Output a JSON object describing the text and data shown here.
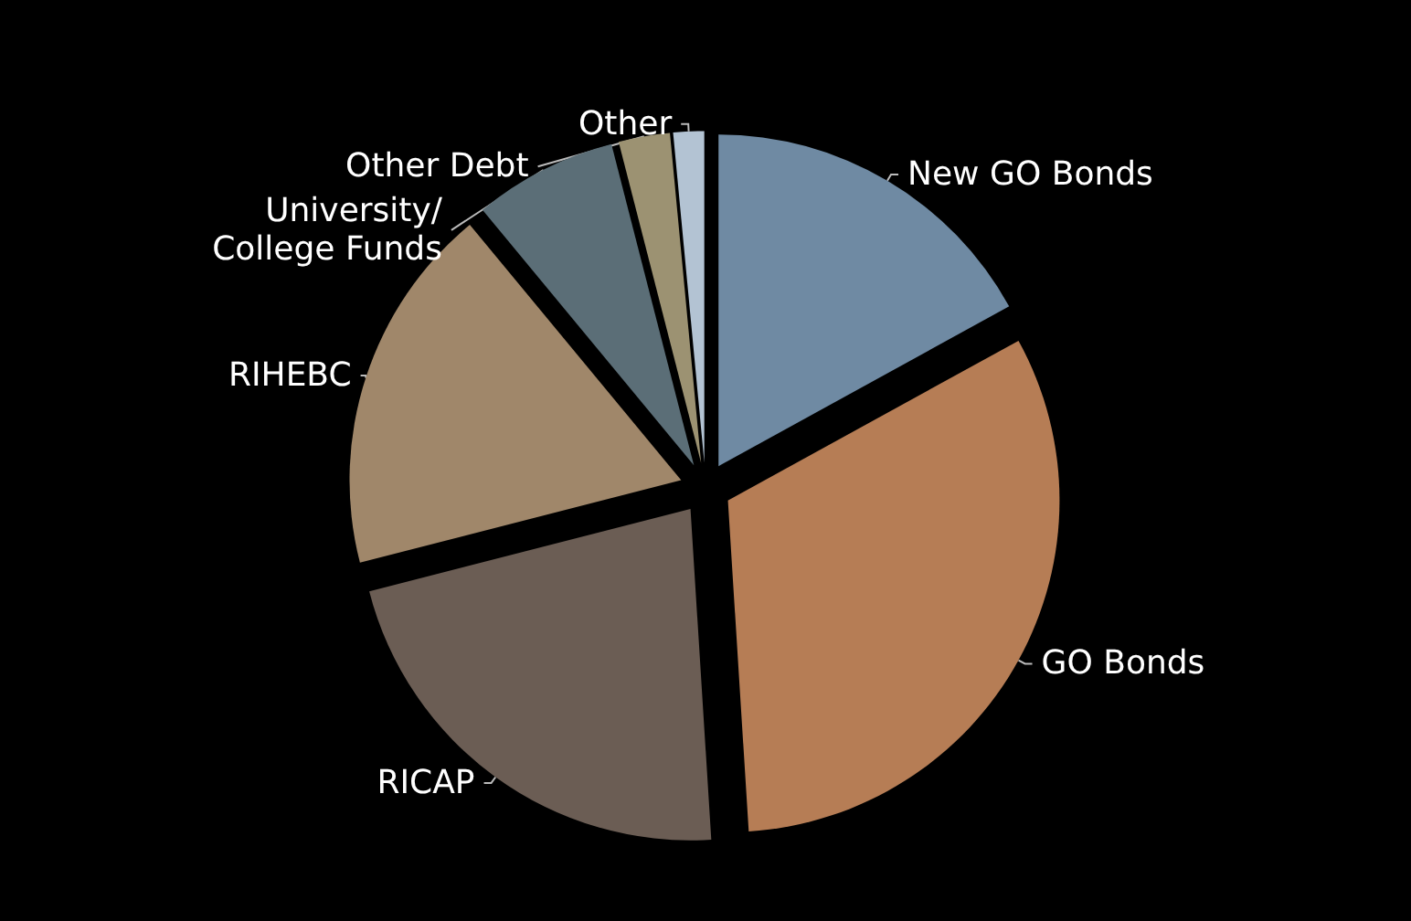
{
  "chart_data": {
    "type": "pie",
    "categories": [
      "New GO Bonds",
      "GO Bonds",
      "RICAP",
      "RIHEBC",
      "University/\nCollege Funds",
      "Other Debt",
      "Other"
    ],
    "values": [
      17,
      32,
      22,
      18,
      7,
      2.5,
      1.5
    ],
    "colors": [
      "#6f8aa3",
      "#b67d55",
      "#6b5d54",
      "#a0876a",
      "#5b6e77",
      "#9c9272",
      "#b3c3d3"
    ],
    "legend": false
  }
}
